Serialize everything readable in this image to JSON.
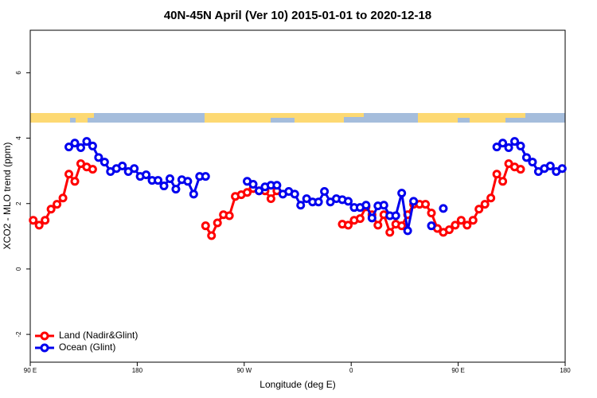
{
  "chart_data": {
    "type": "line",
    "title": "40N-45N April (Ver 10)   2015-01-01 to 2020-12-18",
    "x_label": "Longitude (deg E)",
    "y_label": "XCO2 - MLO trend (ppm)",
    "x": [
      92.5,
      97.5,
      102.5,
      107.5,
      112.5,
      117.5,
      122.5,
      127.5,
      132.5,
      137.5,
      142.5,
      147.5,
      152.5,
      157.5,
      162.5,
      167.5,
      172.5,
      177.5,
      182.5,
      187.5,
      192.5,
      197.5,
      202.5,
      207.5,
      212.5,
      217.5,
      222.5,
      227.5,
      232.5,
      237.5,
      242.5,
      247.5,
      252.5,
      257.5,
      262.5,
      267.5,
      272.5,
      277.5,
      282.5,
      287.5,
      292.5,
      297.5,
      302.5,
      307.5,
      312.5,
      317.5,
      322.5,
      327.5,
      332.5,
      337.5,
      342.5,
      347.5,
      352.5,
      357.5,
      362.5,
      367.5,
      372.5,
      377.5,
      382.5,
      387.5,
      392.5,
      397.5,
      402.5,
      407.5,
      412.5,
      417.5,
      422.5,
      427.5,
      432.5,
      437.5,
      442.5,
      447.5,
      452.5,
      457.5,
      462.5,
      467.5,
      472.5,
      477.5,
      482.5,
      487.5,
      492.5,
      497.5,
      502.5,
      507.5,
      512.5,
      517.5,
      522.5,
      527.5,
      532.5,
      537.5
    ],
    "series": [
      {
        "name": "Land (Nadir&Glint)",
        "color": "#ff0000",
        "values": [
          1.49,
          1.34,
          1.49,
          1.83,
          1.98,
          2.17,
          2.9,
          2.68,
          3.22,
          3.12,
          3.05,
          null,
          null,
          null,
          null,
          null,
          null,
          null,
          null,
          null,
          null,
          null,
          null,
          null,
          null,
          null,
          null,
          null,
          null,
          1.32,
          1.02,
          1.41,
          1.66,
          1.63,
          2.22,
          2.27,
          2.34,
          2.46,
          2.39,
          2.39,
          2.15,
          2.39,
          null,
          null,
          null,
          null,
          null,
          null,
          null,
          null,
          null,
          null,
          1.37,
          1.34,
          1.49,
          1.54,
          1.9,
          1.66,
          1.34,
          1.66,
          1.12,
          1.37,
          1.32,
          1.66,
          1.98,
          1.98,
          1.98,
          1.71,
          1.24,
          1.12,
          1.2,
          1.34,
          1.49,
          1.34,
          1.49,
          1.83,
          1.98,
          2.17,
          2.9,
          2.68,
          3.22,
          3.12,
          3.05,
          null,
          null,
          null,
          null,
          null,
          null,
          null
        ]
      },
      {
        "name": "Ocean (Glint)",
        "color": "#0000ee",
        "values": [
          null,
          null,
          null,
          null,
          null,
          null,
          3.73,
          3.85,
          3.71,
          3.9,
          3.76,
          3.41,
          3.27,
          2.98,
          3.07,
          3.15,
          2.98,
          3.07,
          2.83,
          2.88,
          2.71,
          2.71,
          2.54,
          2.76,
          2.44,
          2.73,
          2.68,
          2.29,
          2.83,
          2.83,
          null,
          null,
          null,
          null,
          null,
          null,
          2.68,
          2.59,
          2.39,
          2.51,
          2.56,
          2.56,
          2.29,
          2.37,
          2.29,
          1.95,
          2.15,
          2.05,
          2.05,
          2.37,
          2.05,
          2.15,
          2.12,
          2.07,
          1.88,
          1.88,
          1.95,
          1.56,
          1.93,
          1.95,
          1.63,
          1.63,
          2.32,
          1.17,
          2.07,
          null,
          null,
          1.32,
          null,
          1.85,
          null,
          null,
          null,
          null,
          null,
          null,
          null,
          null,
          3.73,
          3.85,
          3.71,
          3.9,
          3.76,
          3.41,
          3.27,
          2.98,
          3.07,
          3.15,
          2.98,
          3.07
        ]
      }
    ],
    "xlim": [
      90,
      540
    ],
    "xticks": [
      {
        "value": 90,
        "label": "90 E"
      },
      {
        "value": 180,
        "label": "180"
      },
      {
        "value": 270,
        "label": "90 W"
      },
      {
        "value": 360,
        "label": "0"
      },
      {
        "value": 450,
        "label": "90 E"
      },
      {
        "value": 540,
        "label": "180"
      }
    ],
    "ylim": [
      -2.85,
      7.3
    ],
    "yticks": [
      -2,
      0,
      2,
      4,
      6
    ],
    "legend": "bottomleft"
  }
}
